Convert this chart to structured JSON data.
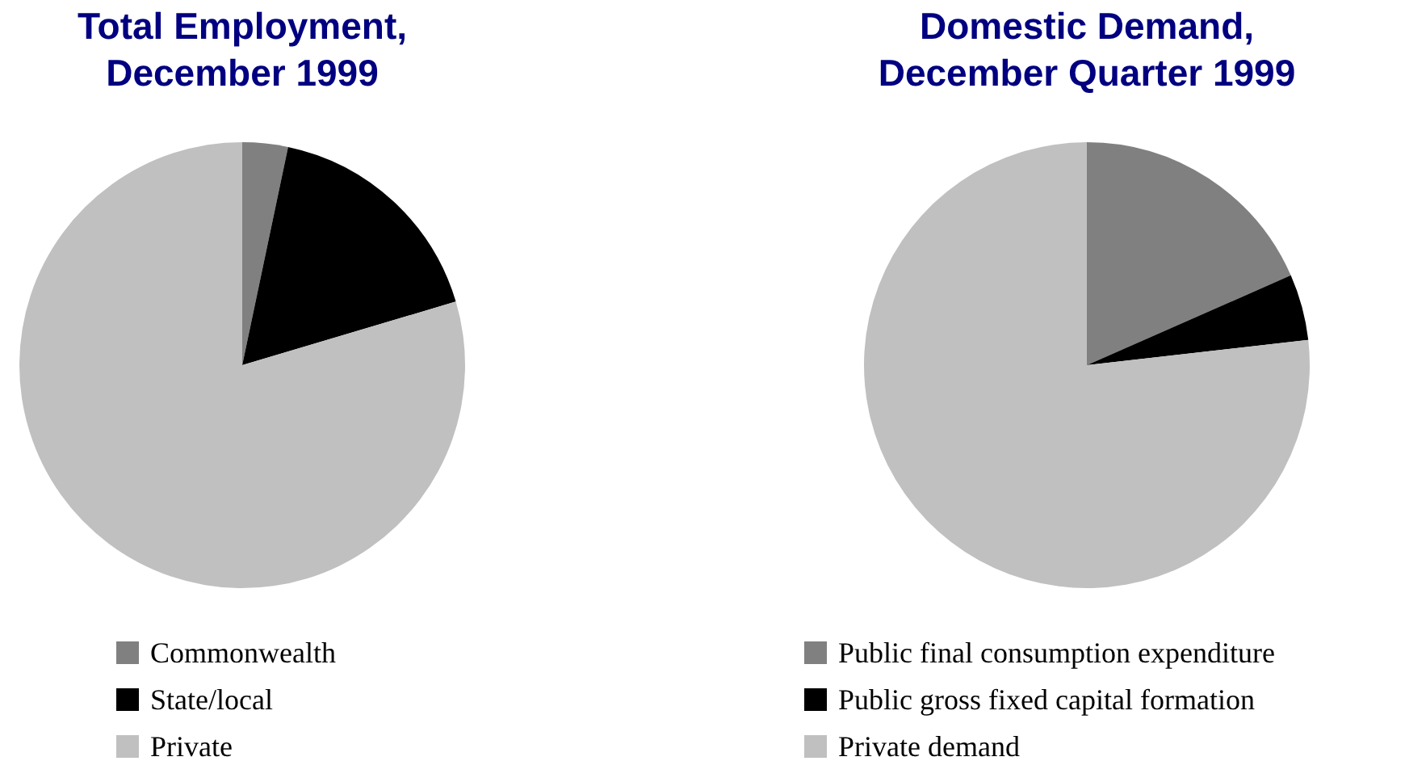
{
  "chart_data": [
    {
      "type": "pie",
      "title": "Total Employment, December 1999",
      "categories": [
        "Commonwealth",
        "State/local",
        "Private"
      ],
      "values": [
        3.3,
        17.1,
        79.6
      ],
      "colors": [
        "#808080",
        "#000000",
        "#c0c0c0"
      ],
      "legend": "bottom"
    },
    {
      "type": "pie",
      "title": "Domestic Demand, December Quarter 1999",
      "categories": [
        "Public final consumption expenditure",
        "Public gross fixed capital formation",
        "Private demand"
      ],
      "values": [
        18.4,
        4.8,
        76.8
      ],
      "colors": [
        "#808080",
        "#000000",
        "#c0c0c0"
      ],
      "legend": "bottom"
    }
  ]
}
